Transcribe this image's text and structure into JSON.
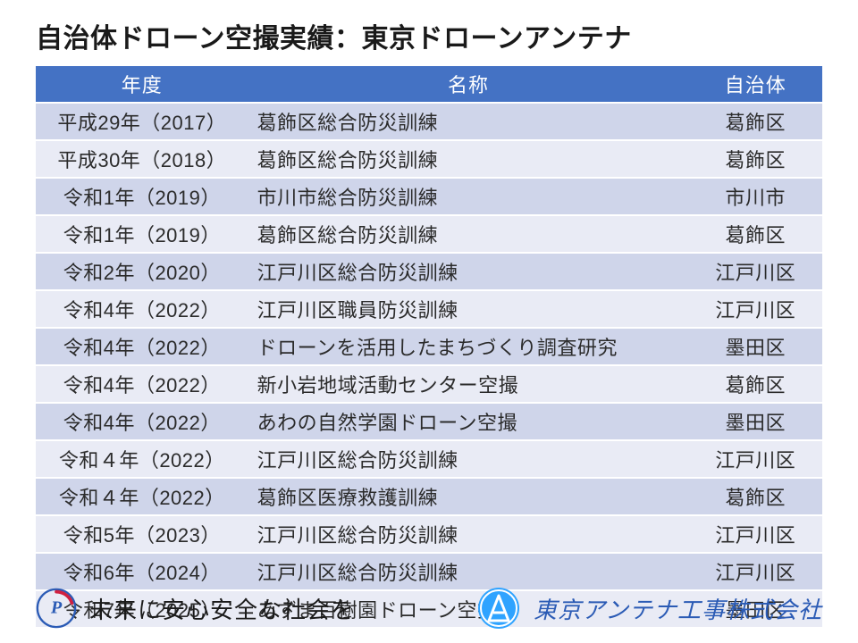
{
  "colors": {
    "header_bg": "#4472c4",
    "row_odd": "#cfd5ea",
    "row_even": "#e9ebf5",
    "accent": "#2b5bb5",
    "text": "#1a1a1a",
    "white": "#ffffff"
  },
  "title": "自治体ドローン空撮実績：東京ドローンアンテナ",
  "table": {
    "type": "table",
    "columns": [
      {
        "key": "year",
        "label": "年度",
        "width": "27%",
        "align": "center"
      },
      {
        "key": "name",
        "label": "名称",
        "width": "56%",
        "align": "left"
      },
      {
        "key": "muni",
        "label": "自治体",
        "width": "17%",
        "align": "center"
      }
    ],
    "header_bg": "#4472c4",
    "header_text_color": "#ffffff",
    "row_colors": [
      "#cfd5ea",
      "#e9ebf5"
    ],
    "font_size_pt": 17,
    "rows": [
      {
        "year": "平成29年（2017）",
        "name": "葛飾区総合防災訓練",
        "muni": "葛飾区"
      },
      {
        "year": "平成30年（2018）",
        "name": "葛飾区総合防災訓練",
        "muni": "葛飾区"
      },
      {
        "year": "令和1年（2019）",
        "name": "市川市総合防災訓練",
        "muni": "市川市"
      },
      {
        "year": "令和1年（2019）",
        "name": "葛飾区総合防災訓練",
        "muni": "葛飾区"
      },
      {
        "year": "令和2年（2020）",
        "name": "江戸川区総合防災訓練",
        "muni": "江戸川区"
      },
      {
        "year": "令和4年（2022）",
        "name": "江戸川区職員防災訓練",
        "muni": "江戸川区"
      },
      {
        "year": "令和4年（2022）",
        "name": "ドローンを活用したまちづくり調査研究",
        "muni": "墨田区"
      },
      {
        "year": "令和4年（2022）",
        "name": "新小岩地域活動センター空撮",
        "muni": "葛飾区"
      },
      {
        "year": "令和4年（2022）",
        "name": "あわの自然学園ドローン空撮",
        "muni": "墨田区"
      },
      {
        "year": "令和４年（2022）",
        "name": "江戸川区総合防災訓練",
        "muni": "江戸川区"
      },
      {
        "year": "令和４年（2022）",
        "name": "葛飾区医療救護訓練",
        "muni": "葛飾区"
      },
      {
        "year": "令和5年（2023）",
        "name": "江戸川区総合防災訓練",
        "muni": "江戸川区"
      },
      {
        "year": "令和6年（2024）",
        "name": "江戸川区総合防災訓練",
        "muni": "江戸川区"
      },
      {
        "year": "令和7年（2025）",
        "name": "あずま百樹園ドローン空撮",
        "muni": "墨田区"
      }
    ]
  },
  "footer": {
    "pmark_icon": "privacy-mark-icon",
    "slogan": "未来に安心安全な社会を",
    "logo_icon": "company-logo-icon",
    "company": "東京アンテナ工事株式会社",
    "logo_color": "#2fa3ff"
  }
}
